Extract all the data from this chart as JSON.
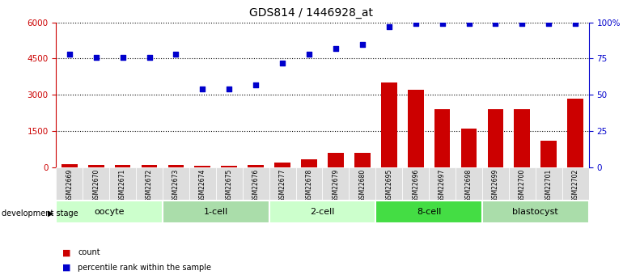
{
  "title": "GDS814 / 1446928_at",
  "samples": [
    "GSM22669",
    "GSM22670",
    "GSM22671",
    "GSM22672",
    "GSM22673",
    "GSM22674",
    "GSM22675",
    "GSM22676",
    "GSM22677",
    "GSM22678",
    "GSM22679",
    "GSM22680",
    "GSM22695",
    "GSM22696",
    "GSM22697",
    "GSM22698",
    "GSM22699",
    "GSM22700",
    "GSM22701",
    "GSM22702"
  ],
  "counts": [
    120,
    100,
    100,
    100,
    110,
    60,
    60,
    100,
    200,
    350,
    600,
    600,
    3500,
    3200,
    2400,
    1600,
    2400,
    2400,
    1100,
    2850
  ],
  "percentiles": [
    78,
    76,
    76,
    76,
    78,
    54,
    54,
    57,
    72,
    78,
    82,
    85,
    97,
    99,
    99,
    99,
    99,
    99,
    99,
    99
  ],
  "stage_groups": [
    {
      "label": "oocyte",
      "start": 0,
      "end": 4,
      "color": "#ccffcc"
    },
    {
      "label": "1-cell",
      "start": 4,
      "end": 8,
      "color": "#aaddaa"
    },
    {
      "label": "2-cell",
      "start": 8,
      "end": 12,
      "color": "#ccffcc"
    },
    {
      "label": "8-cell",
      "start": 12,
      "end": 16,
      "color": "#44dd44"
    },
    {
      "label": "blastocyst",
      "start": 16,
      "end": 20,
      "color": "#aaddaa"
    }
  ],
  "bar_color": "#cc0000",
  "dot_color": "#0000cc",
  "left_ylim": [
    0,
    6000
  ],
  "right_ylim": [
    0,
    100
  ],
  "left_yticks": [
    0,
    1500,
    3000,
    4500,
    6000
  ],
  "right_yticks": [
    0,
    25,
    50,
    75,
    100
  ],
  "legend_count_color": "#cc0000",
  "legend_pct_color": "#0000cc"
}
